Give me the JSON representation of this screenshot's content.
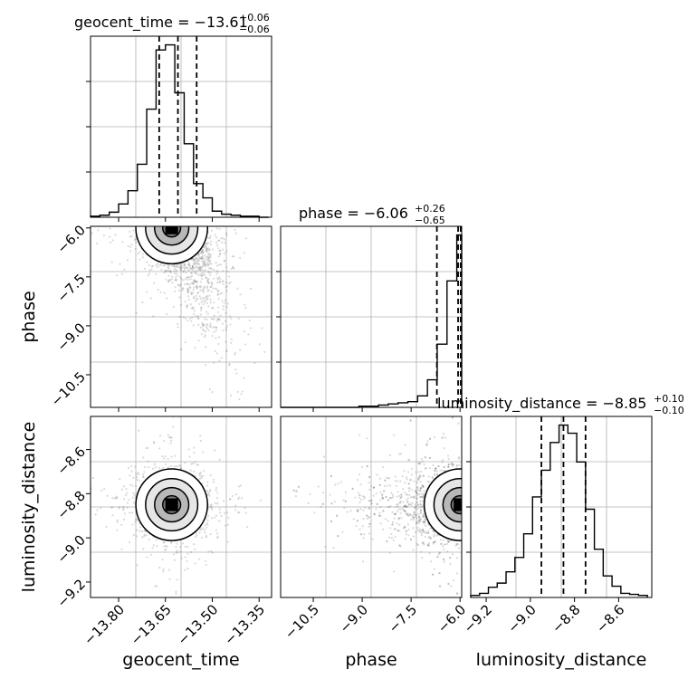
{
  "chart_data": {
    "type": "corner",
    "parameters": [
      "geocent_time",
      "phase",
      "luminosity_distance"
    ],
    "axis_labels": {
      "geocent_time": "geocent_time",
      "phase": "phase",
      "luminosity_distance": "luminosity_distance"
    },
    "ranges": {
      "geocent_time": [
        -13.89,
        -13.31
      ],
      "phase": [
        -11.5,
        -5.95
      ],
      "luminosity_distance": [
        -9.27,
        -8.45
      ]
    },
    "ticks": {
      "geocent_time": [
        {
          "value": -13.8,
          "label": "−13.80"
        },
        {
          "value": -13.65,
          "label": "−13.65"
        },
        {
          "value": -13.5,
          "label": "−13.50"
        },
        {
          "value": -13.35,
          "label": "−13.35"
        }
      ],
      "phase": [
        {
          "value": -10.5,
          "label": "−10.5"
        },
        {
          "value": -9.0,
          "label": "−9.0"
        },
        {
          "value": -7.5,
          "label": "−7.5"
        },
        {
          "value": -6.0,
          "label": "−6.0"
        }
      ],
      "luminosity_distance": [
        {
          "value": -9.2,
          "label": "−9.2"
        },
        {
          "value": -9.0,
          "label": "−9.0"
        },
        {
          "value": -8.8,
          "label": "−8.8"
        },
        {
          "value": -8.6,
          "label": "−8.6"
        }
      ]
    },
    "titles": [
      {
        "param": "geocent_time",
        "main": "geocent_time = −13.61",
        "upper": "+0.06",
        "lower": "−0.06"
      },
      {
        "param": "phase",
        "main": "phase = −6.06",
        "upper": "+0.26",
        "lower": "−0.65"
      },
      {
        "param": "luminosity_distance",
        "main": "luminosity_distance = −8.85",
        "upper": "+0.10",
        "lower": "−0.10"
      }
    ],
    "quantiles": {
      "geocent_time": [
        -13.67,
        -13.61,
        -13.55
      ],
      "phase": [
        -6.71,
        -6.06,
        -5.98
      ],
      "luminosity_distance": [
        -8.95,
        -8.85,
        -8.75
      ]
    },
    "posterior_center": {
      "geocent_time": -13.63,
      "phase": -6.0,
      "luminosity_distance": -8.85
    },
    "histograms": {
      "geocent_time": {
        "bin_edges": [
          -13.89,
          -13.86,
          -13.83,
          -13.8,
          -13.77,
          -13.74,
          -13.71,
          -13.68,
          -13.65,
          -13.62,
          -13.59,
          -13.56,
          -13.53,
          -13.5,
          -13.47,
          -13.44,
          -13.41,
          -13.38,
          -13.35,
          -13.32
        ],
        "counts": [
          1,
          2,
          5,
          13,
          26,
          52,
          106,
          164,
          169,
          122,
          72,
          33,
          19,
          6,
          3,
          2,
          1,
          1,
          0
        ]
      },
      "phase": {
        "bin_edges": [
          -11.5,
          -11.2,
          -10.9,
          -10.6,
          -10.3,
          -10.0,
          -9.7,
          -9.4,
          -9.1,
          -8.8,
          -8.5,
          -8.2,
          -7.9,
          -7.6,
          -7.3,
          -7.0,
          -6.7,
          -6.4,
          -6.1,
          -5.95
        ],
        "counts": [
          0,
          0,
          0,
          0,
          0,
          0,
          0,
          0,
          1,
          1,
          2,
          3,
          4,
          5,
          10,
          24,
          55,
          110,
          150
        ]
      },
      "luminosity_distance": {
        "bin_edges": [
          -9.27,
          -9.23,
          -9.19,
          -9.15,
          -9.11,
          -9.07,
          -9.03,
          -8.99,
          -8.95,
          -8.91,
          -8.87,
          -8.83,
          -8.79,
          -8.75,
          -8.71,
          -8.67,
          -8.63,
          -8.59,
          -8.55,
          -8.51,
          -8.47
        ],
        "counts": [
          2,
          4,
          10,
          14,
          25,
          39,
          62,
          98,
          124,
          151,
          168,
          160,
          132,
          86,
          47,
          21,
          11,
          4,
          3,
          2
        ]
      }
    },
    "contour_levels": [
      0.118,
      0.393,
      0.675,
      0.865
    ],
    "grid": true,
    "line_color": "#000000",
    "sample_color": "#555555"
  }
}
